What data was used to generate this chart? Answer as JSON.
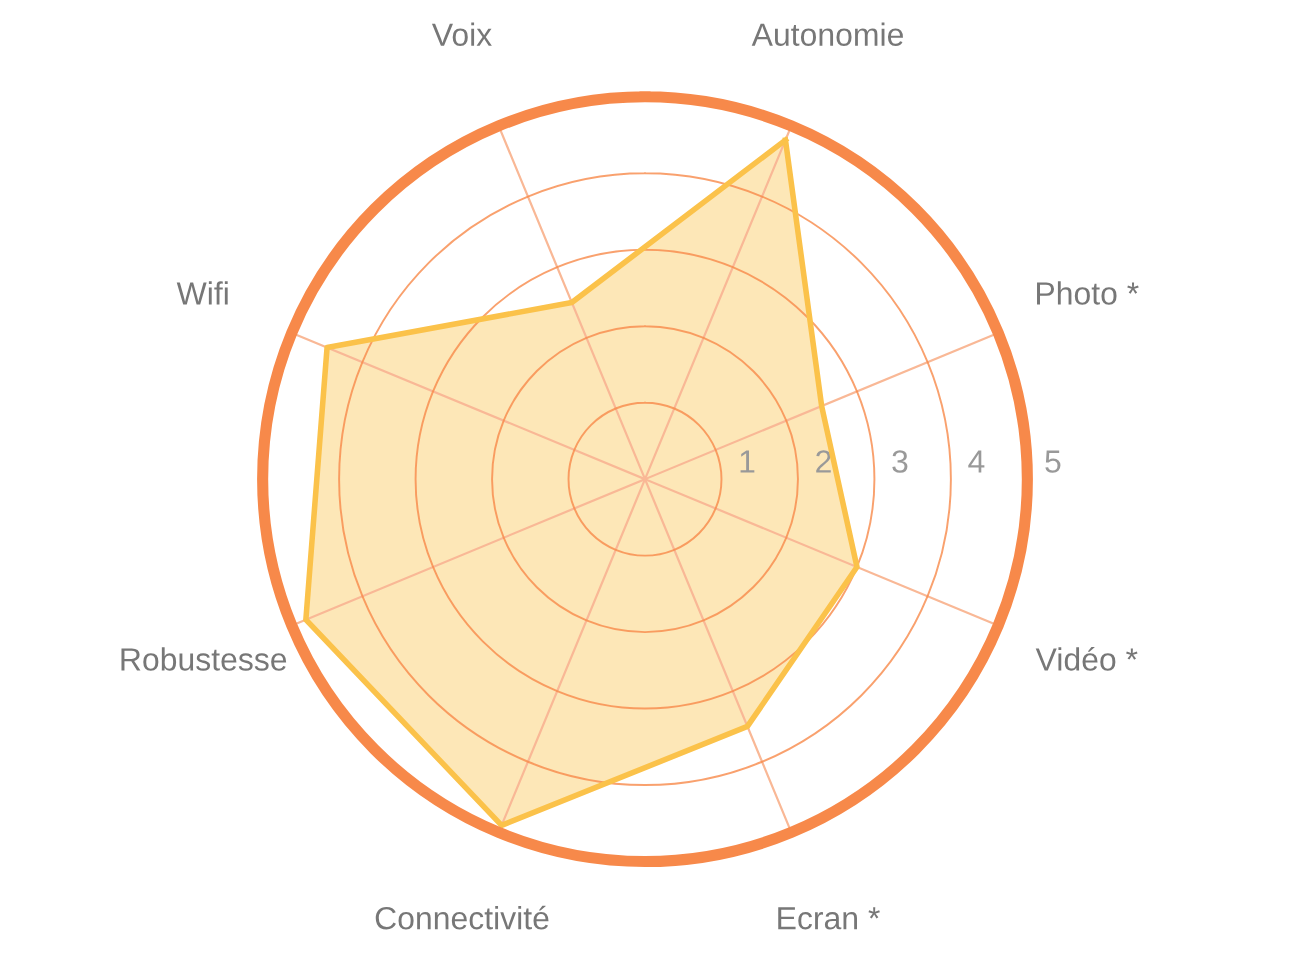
{
  "chart_data": {
    "type": "radar",
    "categories": [
      "Autonomie",
      "Photo *",
      "Vidéo *",
      "Ecran *",
      "Connectivité",
      "Robustesse",
      "Wifi",
      "Voix"
    ],
    "series": [
      {
        "color": "#fbc24a",
        "values": [
          4.8,
          2.5,
          3.0,
          3.5,
          4.9,
          4.8,
          4.5,
          2.5
        ]
      }
    ],
    "ylim": [
      0,
      5
    ],
    "yticks": [
      1,
      2,
      3,
      4,
      5
    ],
    "grid": true
  }
}
